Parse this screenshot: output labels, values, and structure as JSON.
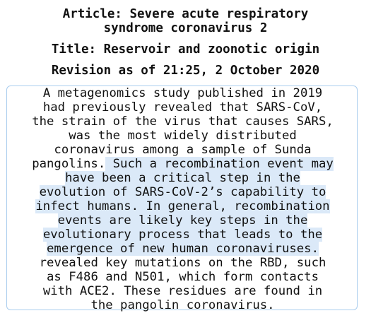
{
  "header": {
    "article": "Article: Severe acute respiratory\nsyndrome coronavirus 2",
    "title": "Title: Reservoir and zoonotic origin",
    "revision": "Revision as of 21:25, 2 October 2020"
  },
  "passage": {
    "before_highlight": "A metagenomics study published in 2019\nhad previously revealed that SARS-CoV,\nthe strain of the virus that causes SARS,\nwas the most widely distributed\ncoronavirus among a sample of Sunda\npangolins.",
    "highlight": " Such a recombination event may\nhave been a critical step in the\nevolution of SARS-CoV-2’s capability to\ninfect humans. In general, recombination\nevents are likely key steps in the\nevolutionary process that leads to the\nemergence of new human coronaviruses.",
    "after_highlight": "\nrevealed key mutations on the RBD, such\nas F486 and N501, which form contacts\nwith ACE2. These residues are found in\nthe pangolin coronavirus.",
    "highlight_color": "#dbe9f8",
    "border_color": "#a9cdee"
  }
}
